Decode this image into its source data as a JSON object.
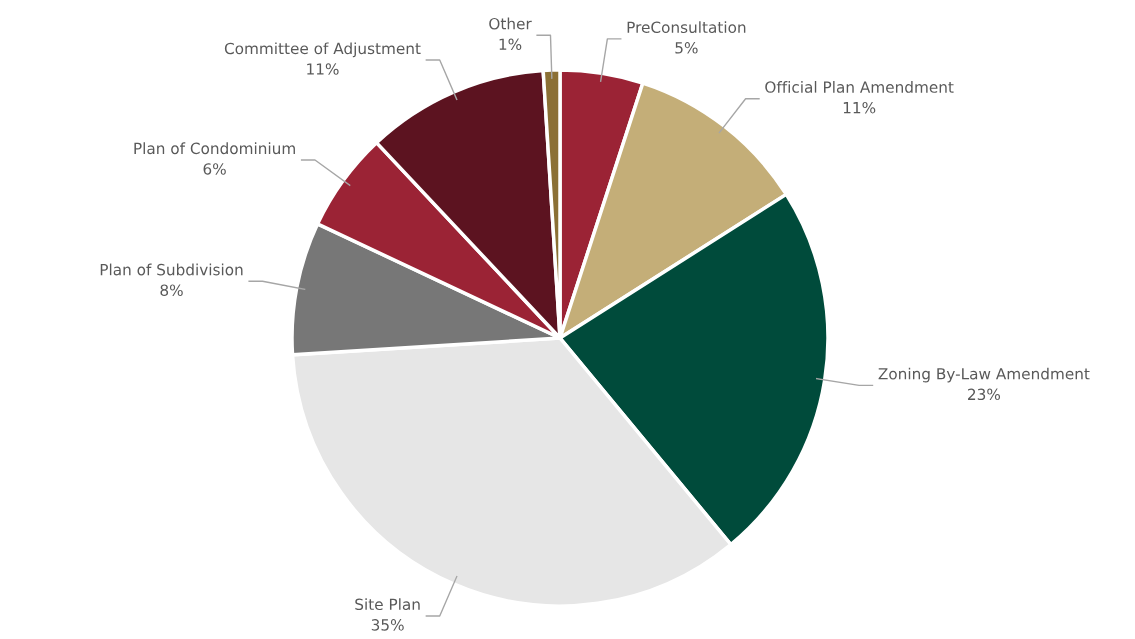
{
  "chart_data": {
    "type": "pie",
    "categories": [
      "PreConsultation",
      "Official Plan Amendment",
      "Zoning By-Law Amendment",
      "Site Plan",
      "Plan of Subdivision",
      "Plan of Condominium",
      "Committee of Adjustment",
      "Other"
    ],
    "values": [
      5,
      11,
      23,
      35,
      8,
      6,
      11,
      1
    ],
    "value_labels": [
      "5%",
      "11%",
      "23%",
      "35%",
      "8%",
      "6%",
      "11%",
      "1%"
    ],
    "colors": [
      "#9b2335",
      "#c4ae78",
      "#004b3b",
      "#e6e6e6",
      "#777777",
      "#9b2335",
      "#5c1320",
      "#8b7035"
    ],
    "legend": false
  }
}
